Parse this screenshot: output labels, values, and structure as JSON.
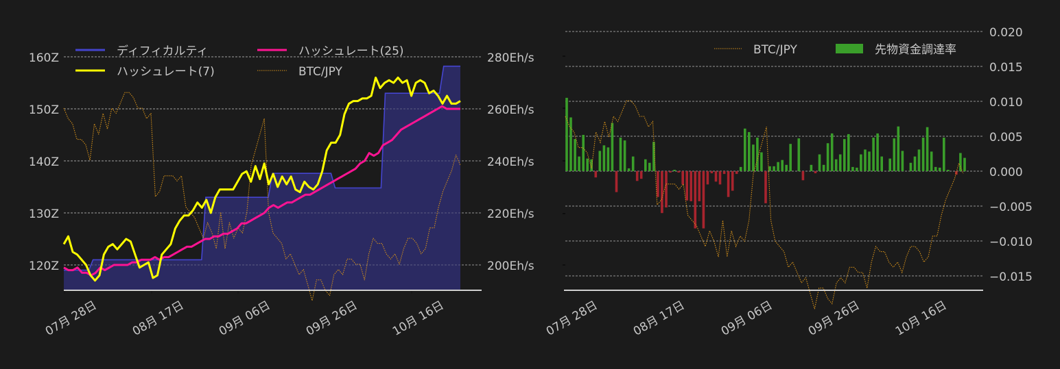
{
  "chart_data": [
    {
      "type": "line",
      "id": "left",
      "title": "",
      "xlabel": "",
      "x_ticks": [
        "07月 28日",
        "08月 17日",
        "09月 06日",
        "09月 26日",
        "10月 16日"
      ],
      "left_axis": {
        "label": "Difficulty",
        "ticks": [
          "120Z",
          "130Z",
          "140Z",
          "150Z",
          "160Z"
        ],
        "range": [
          115,
          164
        ]
      },
      "right_axis": {
        "label": "Hashrate",
        "ticks": [
          "200Eh/s",
          "220Eh/s",
          "240Eh/s",
          "260Eh/s",
          "280Eh/s"
        ],
        "range": [
          190,
          288
        ]
      },
      "legend": [
        {
          "label": "ディフィカルティ",
          "color": "#4444cc",
          "style": "line"
        },
        {
          "label": "ハッシュレート(25)",
          "color": "#ff1493",
          "style": "line"
        },
        {
          "label": "ハッシュレート(7)",
          "color": "#ffff00",
          "style": "line"
        },
        {
          "label": "BTC/JPY",
          "color": "#d4901a",
          "style": "dotted"
        }
      ],
      "grid": true,
      "series": [
        {
          "name": "ディフィカルティ",
          "axis": "left",
          "type": "step-area",
          "color": "#4545d0",
          "fill": "#2b2a62",
          "values": [
            119.0,
            119.0,
            119.0,
            119.0,
            119.0,
            119.0,
            119.0,
            121.0,
            121.0,
            121.0,
            121.0,
            121.0,
            121.0,
            121.0,
            121.0,
            121.0,
            121.0,
            121.0,
            121.0,
            121.0,
            121.0,
            121.0,
            121.0,
            121.0,
            121.0,
            121.0,
            121.0,
            121.0,
            121.0,
            121.0,
            121.0,
            121.0,
            121.0,
            121.0,
            133.0,
            133.0,
            133.0,
            133.0,
            133.0,
            133.0,
            133.0,
            133.0,
            133.0,
            133.0,
            133.0,
            133.0,
            133.0,
            133.0,
            133.0,
            133.0,
            137.6,
            137.6,
            137.6,
            137.6,
            137.6,
            137.6,
            137.6,
            137.6,
            137.6,
            137.6,
            137.6,
            137.6,
            137.6,
            137.6,
            137.6,
            134.8,
            134.8,
            134.8,
            134.8,
            134.8,
            134.8,
            134.8,
            134.8,
            134.8,
            134.8,
            134.8,
            134.8,
            153.0,
            153.0,
            153.0,
            153.0,
            153.0,
            153.0,
            153.0,
            153.0,
            153.0,
            153.0,
            153.0,
            153.0,
            153.0,
            153.0,
            158.2,
            158.2,
            158.2,
            158.2,
            158.2
          ]
        },
        {
          "name": "ハッシュレート(7)",
          "axis": "right",
          "type": "line",
          "color": "#ffff00",
          "values": [
            208,
            211,
            205,
            204,
            202,
            200,
            196,
            194,
            196,
            204,
            207,
            208,
            206,
            208,
            210,
            209,
            204,
            199,
            200,
            201,
            195,
            196,
            204,
            206,
            208,
            214,
            217,
            219,
            219,
            221,
            224,
            222,
            225,
            220,
            226,
            229,
            229,
            229,
            229,
            232,
            235,
            236,
            232,
            238,
            233,
            239,
            231,
            235,
            230,
            234,
            231,
            234,
            229,
            228,
            232,
            230,
            229,
            231,
            236,
            244,
            247,
            247,
            250,
            258,
            262,
            263,
            263,
            264,
            264,
            265,
            272,
            268,
            270,
            271,
            270,
            272,
            270,
            271,
            265,
            270,
            271,
            270,
            266,
            267,
            265,
            262,
            265,
            262,
            262,
            263
          ]
        },
        {
          "name": "ハッシュレート(25)",
          "axis": "right",
          "type": "line",
          "color": "#ff1493",
          "values": [
            199,
            198,
            198,
            199,
            197,
            197,
            196,
            197,
            199,
            198,
            199,
            200,
            200,
            200,
            200,
            201,
            201,
            202,
            202,
            202,
            203,
            202,
            203,
            203,
            204,
            205,
            206,
            207,
            207,
            208,
            209,
            210,
            210,
            211,
            211,
            212,
            212,
            213,
            214,
            216,
            216,
            217,
            218,
            219,
            220,
            222,
            223,
            222,
            223,
            224,
            224,
            225,
            226,
            227,
            227,
            228,
            229,
            230,
            231,
            232,
            233,
            234,
            235,
            236,
            237,
            239,
            240,
            243,
            242,
            243,
            246,
            247,
            248,
            250,
            252,
            253,
            254,
            255,
            256,
            257,
            258,
            259,
            260,
            261,
            260,
            260,
            260,
            260
          ]
        },
        {
          "name": "BTC/JPY",
          "axis": "hidden",
          "type": "line",
          "style": "dotted",
          "color": "#d4901a",
          "values": [
            150,
            148,
            147,
            144,
            144,
            143,
            140,
            147,
            145,
            149,
            146,
            150,
            149,
            151,
            153,
            153,
            152,
            150,
            150,
            148,
            149,
            133,
            134,
            137,
            137,
            137,
            136,
            137,
            131,
            130,
            129,
            127,
            125,
            128,
            126,
            123,
            130,
            123,
            128,
            125,
            127,
            126,
            130,
            139,
            142,
            145,
            148,
            130,
            126,
            125,
            124,
            121,
            122,
            120,
            118,
            119,
            116,
            113,
            117,
            117,
            115,
            114,
            118,
            119,
            118,
            121,
            121,
            120,
            120,
            117,
            122,
            125,
            124,
            124,
            122,
            121,
            122,
            120,
            123,
            125,
            125,
            124,
            122,
            123,
            127,
            127,
            131,
            134,
            136,
            138,
            141,
            139
          ]
        }
      ]
    },
    {
      "type": "bar",
      "id": "right",
      "title": "",
      "xlabel": "",
      "x_ticks": [
        "07月 28日",
        "08月 17日",
        "09月 06日",
        "09月 26日",
        "10月 16日"
      ],
      "right_axis": {
        "ticks": [
          "0.020",
          "0.015",
          "0.010",
          "0.005",
          "0.000",
          "−0.005",
          "−0.010",
          "−0.015"
        ],
        "range": [
          -0.017,
          0.0205
        ]
      },
      "legend": [
        {
          "label": "BTC/JPY",
          "color": "#d4901a",
          "style": "dotted"
        },
        {
          "label": "先物資金調達率",
          "color": "#3a9e2a",
          "style": "bar"
        }
      ],
      "grid": true,
      "positive_color": "#3a9e2a",
      "negative_color": "#a8242e",
      "series": [
        {
          "name": "先物資金調達率",
          "type": "bar",
          "values": [
            0.0105,
            0.0077,
            0.0046,
            0.0021,
            0.0052,
            0.0018,
            0.0017,
            -0.0009,
            0.0029,
            0.0037,
            0.0034,
            0.0069,
            -0.003,
            0.0048,
            0.0044,
            0.0004,
            0.0021,
            -0.0014,
            -0.0011,
            0.0017,
            0.0012,
            0.0042,
            -0.0037,
            -0.006,
            -0.0052,
            -0.0002,
            0.0002,
            -0.0002,
            -0.0019,
            -0.0042,
            -0.0043,
            -0.0082,
            -0.0043,
            -0.0082,
            -0.0019,
            -0.0003,
            -0.0015,
            -0.0019,
            -0.0004,
            -0.0037,
            -0.0028,
            -0.0004,
            0.0006,
            0.0061,
            0.0056,
            0.0038,
            0.0048,
            0.0027,
            -0.0046,
            0.0007,
            0.0007,
            0.0013,
            0.0016,
            0.0009,
            0.0039,
            0.0,
            0.0047,
            -0.0013,
            0.0,
            0.0009,
            -0.0003,
            0.0024,
            0.0009,
            0.004,
            0.0054,
            0.0017,
            0.0024,
            0.0046,
            0.0053,
            0.0006,
            0.0005,
            0.0024,
            0.0031,
            0.0028,
            0.0048,
            0.0054,
            0.0021,
            0.0,
            0.0018,
            0.0047,
            0.0064,
            0.0029,
            0.0,
            0.0012,
            0.0021,
            0.0031,
            0.0048,
            0.0063,
            0.0028,
            0.0006,
            0.0005,
            0.0048,
            0.0002,
            0.0,
            -0.0005,
            0.0026,
            0.0019
          ]
        },
        {
          "name": "BTC/JPY",
          "type": "line",
          "style": "dotted",
          "color": "#d4901a",
          "values": [
            150,
            148,
            147,
            144,
            144,
            143,
            140,
            147,
            145,
            149,
            146,
            150,
            149,
            151,
            153,
            153,
            152,
            150,
            150,
            148,
            149,
            133,
            134,
            137,
            137,
            137,
            136,
            137,
            131,
            130,
            129,
            127,
            125,
            128,
            126,
            123,
            130,
            123,
            128,
            125,
            127,
            126,
            130,
            139,
            142,
            145,
            148,
            130,
            126,
            125,
            124,
            121,
            122,
            120,
            118,
            119,
            116,
            113,
            117,
            117,
            115,
            114,
            118,
            119,
            118,
            121,
            121,
            120,
            120,
            117,
            122,
            125,
            124,
            124,
            122,
            121,
            122,
            120,
            123,
            125,
            125,
            124,
            122,
            123,
            127,
            127,
            131,
            134,
            136,
            138,
            141,
            139
          ]
        }
      ]
    }
  ]
}
